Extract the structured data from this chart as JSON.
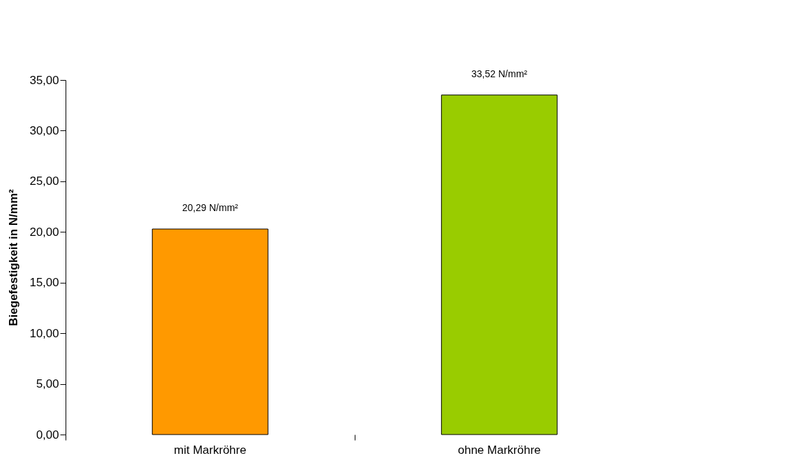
{
  "chart_data": {
    "type": "bar",
    "ylabel": "Biegefestigkeit in N/mm²",
    "categories": [
      "mit Markröhre",
      "ohne Markröhre"
    ],
    "values": [
      20.29,
      33.52
    ],
    "colors": [
      "#ff9900",
      "#99cc00"
    ],
    "value_labels": [
      "20,29 N/mm²",
      "33,52 N/mm²"
    ],
    "ylim": [
      0,
      35
    ],
    "yticks": [
      {
        "value": 0,
        "label": "0,00"
      },
      {
        "value": 5,
        "label": "5,00"
      },
      {
        "value": 10,
        "label": "10,00"
      },
      {
        "value": 15,
        "label": "15,00"
      },
      {
        "value": 20,
        "label": "20,00"
      },
      {
        "value": 25,
        "label": "25,00"
      },
      {
        "value": 30,
        "label": "30,00"
      },
      {
        "value": 35,
        "label": "35,00"
      }
    ],
    "grid": false
  }
}
